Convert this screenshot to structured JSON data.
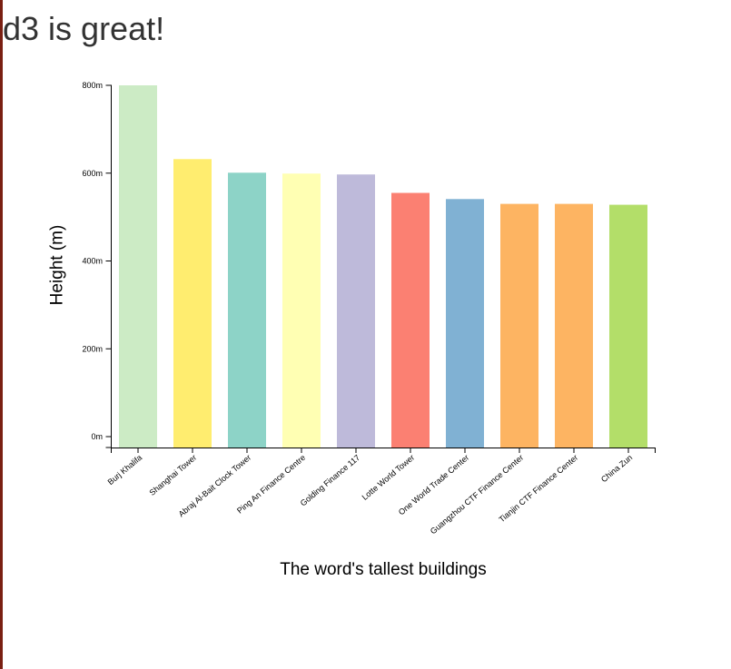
{
  "page": {
    "heading": "d3 is great!"
  },
  "chart_data": {
    "type": "bar",
    "title": "",
    "xlabel": "The word's tallest buildings",
    "ylabel": "Height (m)",
    "ylim": [
      0,
      800
    ],
    "yticks": [
      0,
      200,
      400,
      600,
      800
    ],
    "y_unit_suffix": "m",
    "grid": false,
    "legend": "none",
    "categories": [
      "Burj Khalifa",
      "Shanghai Tower",
      "Abraj Al-Bait Clock Tower",
      "Ping An Finance Centre",
      "Golding Finance 117",
      "Lotte World Tower",
      "One World Trade Center",
      "Guangzhou CTF Finance Center",
      "Tianjin CTF Finance Center",
      "China Zun"
    ],
    "values": [
      828,
      632,
      601,
      599,
      597,
      555,
      541,
      530,
      530,
      528
    ],
    "colors": [
      "#ccebc5",
      "#ffed6f",
      "#8dd3c7",
      "#ffffb3",
      "#bebada",
      "#fb8072",
      "#80b1d3",
      "#fdb462",
      "#fdb462",
      "#b3de69"
    ]
  }
}
